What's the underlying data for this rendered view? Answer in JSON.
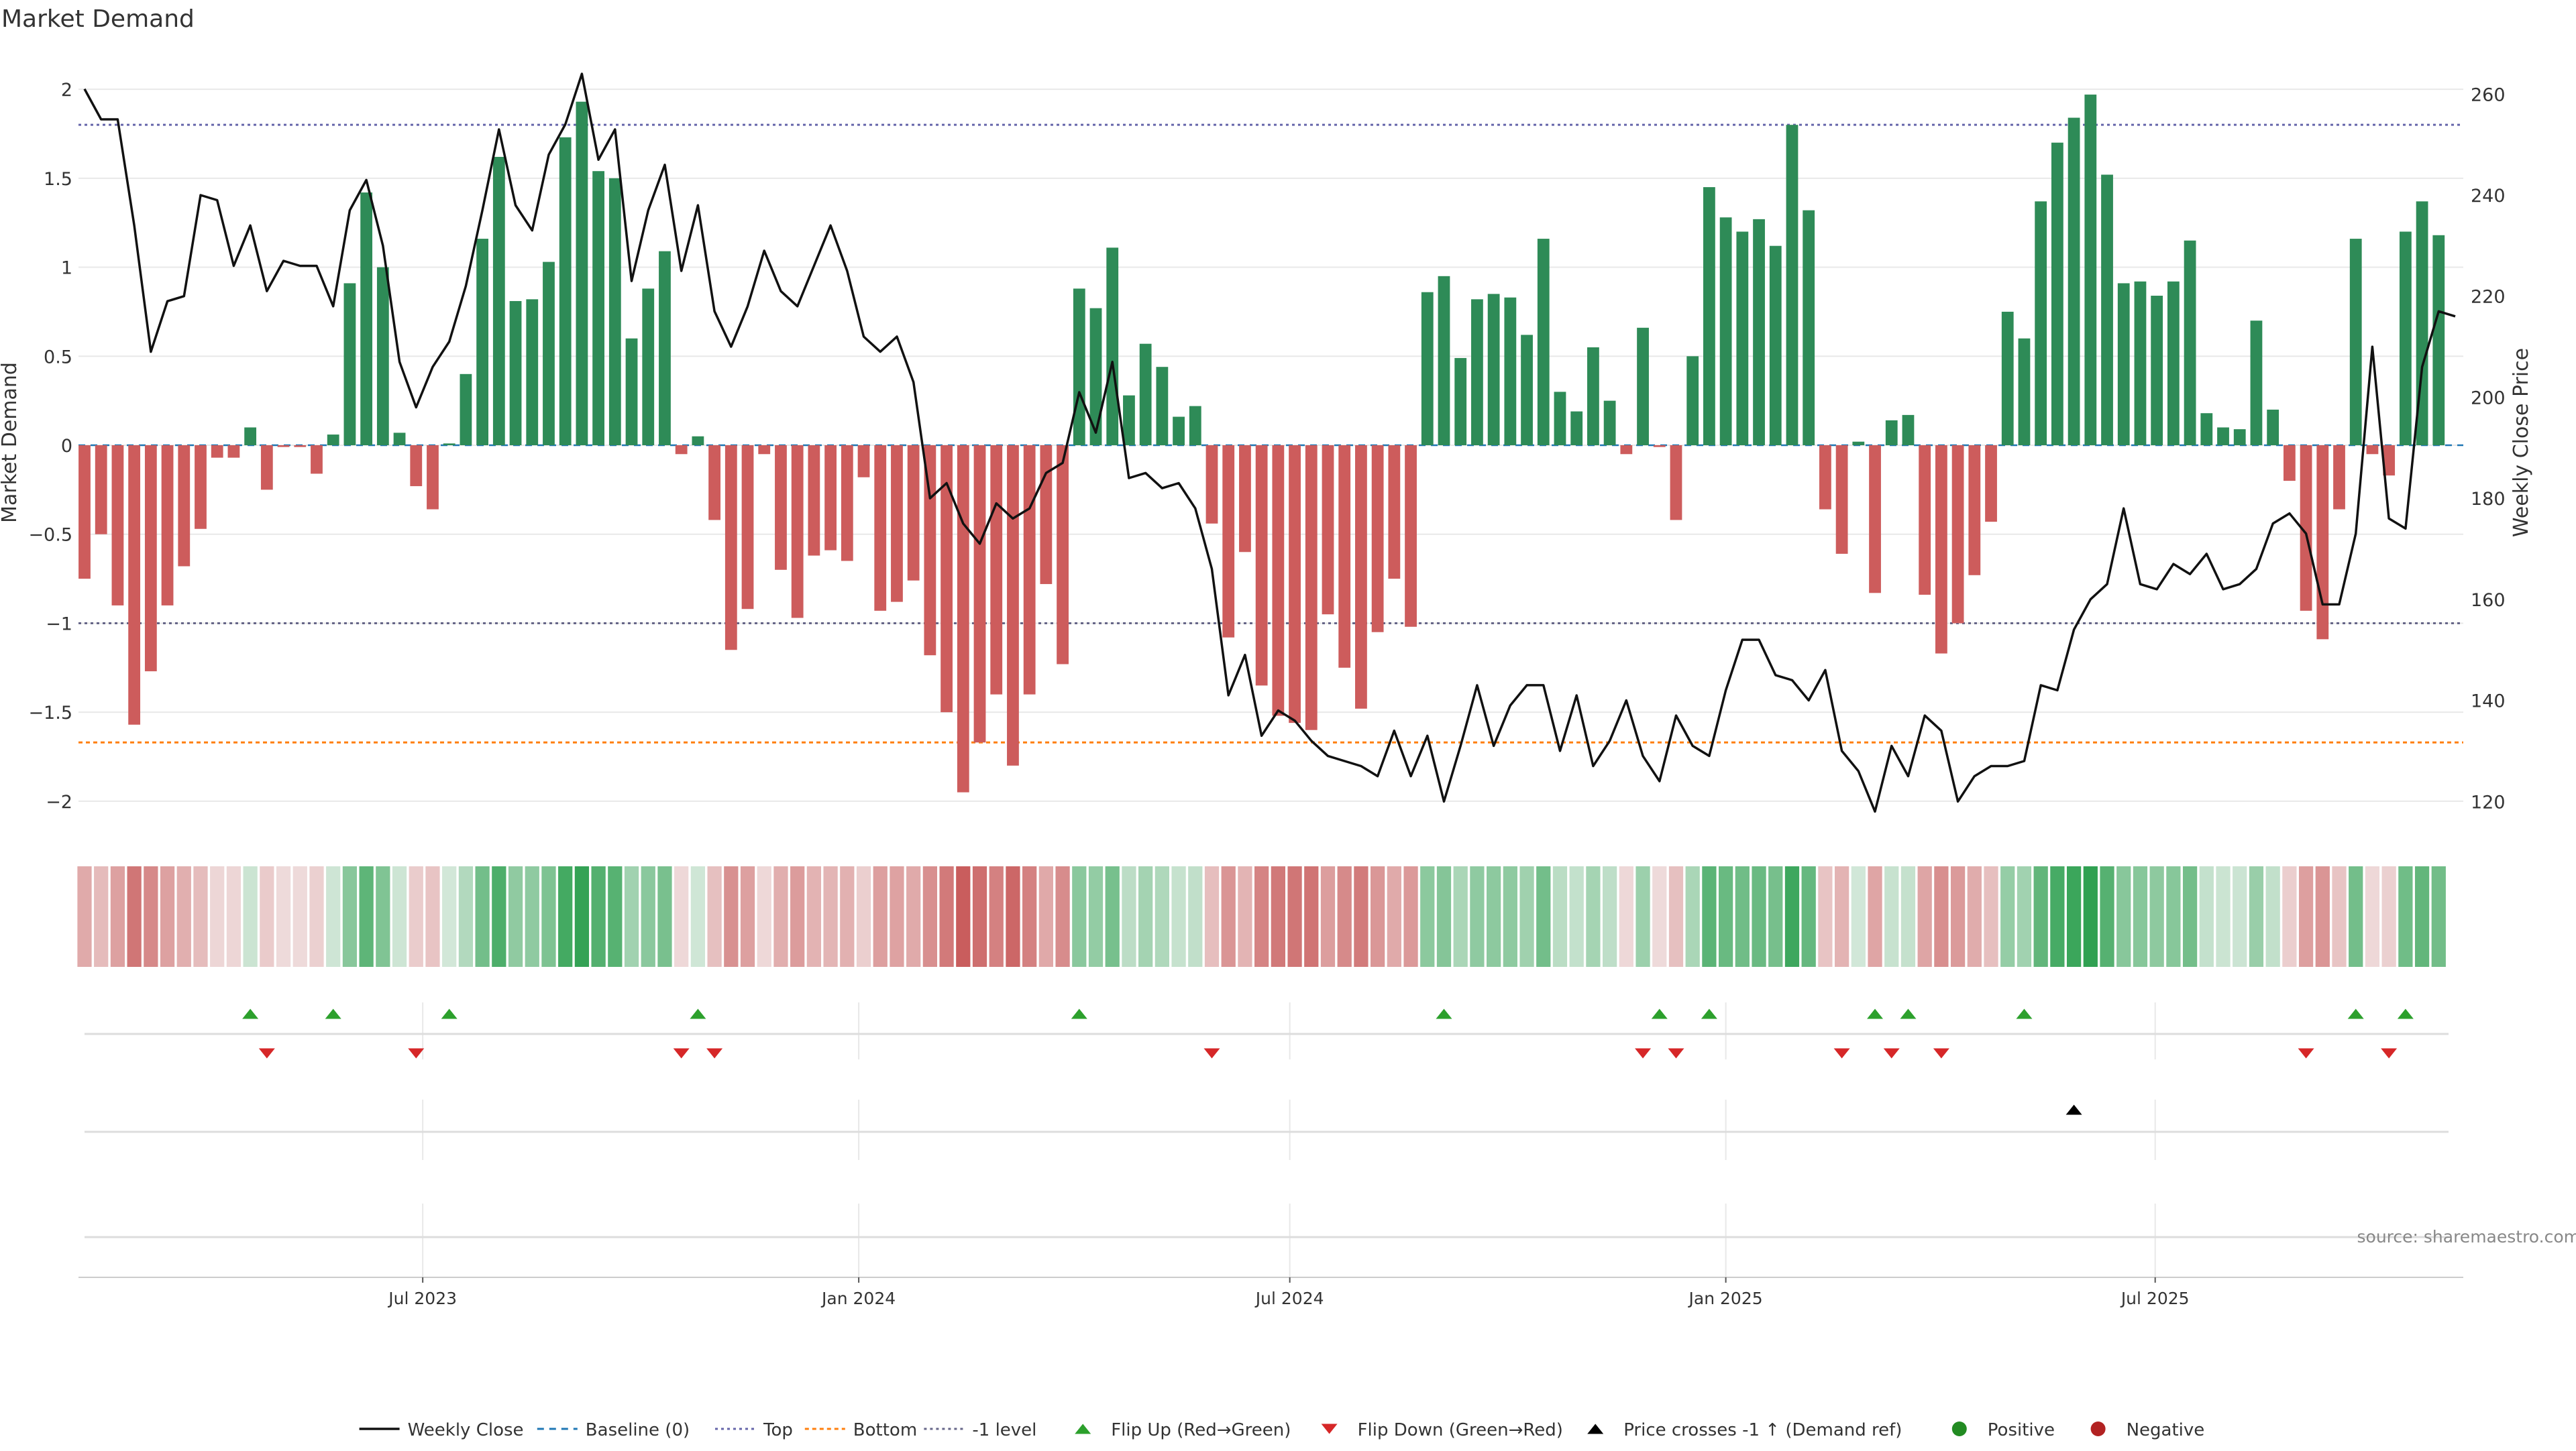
{
  "chart_data": {
    "type": "bar",
    "title": "Market Demand",
    "ylabel": "Market Demand",
    "y2label": "Weekly Close Price",
    "ylim": [
      -2.2,
      2.2
    ],
    "y2lim": [
      113,
      268
    ],
    "yticks": [
      -2,
      -1.5,
      -1,
      -0.5,
      0,
      0.5,
      1,
      1.5,
      2
    ],
    "ytick_labels": [
      "−2",
      "−1.5",
      "−1",
      "−0.5",
      "0",
      "0.5",
      "1",
      "1.5",
      "2"
    ],
    "y2ticks": [
      120,
      140,
      160,
      180,
      200,
      220,
      240,
      260
    ],
    "y2tick_labels": [
      "120",
      "140",
      "160",
      "180",
      "200",
      "220",
      "240",
      "260"
    ],
    "x_start": "2023-02-06",
    "week_count": 144,
    "xticks": [
      {
        "label": "Jul 2023",
        "week": 20.4
      },
      {
        "label": "Jan 2024",
        "week": 46.7
      },
      {
        "label": "Jul 2024",
        "week": 72.7
      },
      {
        "label": "Jan 2025",
        "week": 99.0
      },
      {
        "label": "Jul 2025",
        "week": 124.9
      }
    ],
    "reference_lines": {
      "top": 1.8,
      "bottom": -1.67,
      "minus_one": -1.0,
      "baseline": 0
    },
    "series": [
      {
        "name": "Market Demand",
        "kind": "bar",
        "values": [
          -0.75,
          -0.5,
          -0.9,
          -1.57,
          -1.27,
          -0.9,
          -0.68,
          -0.47,
          -0.07,
          -0.07,
          0.1,
          -0.25,
          -0.01,
          -0.01,
          -0.16,
          0.06,
          0.91,
          1.42,
          1.0,
          0.07,
          -0.23,
          -0.36,
          0.01,
          0.4,
          1.16,
          1.62,
          0.81,
          0.82,
          1.03,
          1.73,
          1.93,
          1.54,
          1.5,
          0.6,
          0.88,
          1.09,
          -0.05,
          0.05,
          -0.42,
          -1.15,
          -0.92,
          -0.05,
          -0.7,
          -0.97,
          -0.62,
          -0.59,
          -0.65,
          -0.18,
          -0.93,
          -0.88,
          -0.76,
          -1.18,
          -1.5,
          -1.95,
          -1.67,
          -1.4,
          -1.8,
          -1.4,
          -0.78,
          -1.23,
          0.88,
          0.77,
          1.11,
          0.28,
          0.57,
          0.44,
          0.16,
          0.22,
          -0.44,
          -1.08,
          -0.6,
          -1.35,
          -1.52,
          -1.56,
          -1.6,
          -0.95,
          -1.25,
          -1.48,
          -1.05,
          -0.75,
          -1.02,
          0.86,
          0.95,
          0.49,
          0.82,
          0.85,
          0.83,
          0.62,
          1.16,
          0.3,
          0.19,
          0.55,
          0.25,
          -0.05,
          0.66,
          -0.01,
          -0.42,
          0.5,
          1.45,
          1.28,
          1.2,
          1.27,
          1.12,
          1.8,
          1.32,
          -0.36,
          -0.61,
          0.02,
          -0.83,
          0.14,
          0.17,
          -0.84,
          -1.17,
          -1.0,
          -0.73,
          -0.43,
          0.75,
          0.6,
          1.37,
          1.7,
          1.84,
          1.97,
          1.52,
          0.91,
          0.92,
          0.84,
          0.92,
          1.15,
          0.18,
          0.1,
          0.09,
          0.7,
          0.2,
          -0.2,
          -0.93,
          -1.09,
          -0.36,
          1.16,
          -0.05,
          -0.17,
          1.2,
          1.37,
          1.18
        ]
      },
      {
        "name": "Weekly Close",
        "kind": "line",
        "axis": "right",
        "values": [
          261,
          255,
          255,
          234,
          209,
          219,
          220,
          240,
          239,
          226,
          234,
          221,
          227,
          226,
          226,
          218,
          237,
          243,
          230,
          207,
          198,
          206,
          211,
          222,
          237,
          253,
          238,
          233,
          248,
          254,
          264,
          247,
          253,
          223,
          237,
          246,
          225,
          238,
          217,
          210,
          218,
          229,
          221,
          218,
          226,
          234,
          225,
          212,
          209,
          212,
          203,
          180,
          183,
          175,
          171,
          179,
          176,
          178,
          185,
          187,
          201,
          193,
          207,
          184,
          185,
          182,
          183,
          178,
          166,
          141,
          149,
          133,
          138,
          136,
          132,
          129,
          128,
          127,
          125,
          134,
          125,
          133,
          120,
          131,
          143,
          131,
          139,
          143,
          143,
          130,
          141,
          127,
          132,
          140,
          129,
          124,
          137,
          131,
          129,
          142,
          152,
          152,
          145,
          144,
          140,
          146,
          130,
          126,
          118,
          131,
          125,
          137,
          134,
          120,
          125,
          127,
          127,
          128,
          143,
          142,
          154,
          160,
          163,
          178,
          163,
          162,
          167,
          165,
          169,
          162,
          163,
          166,
          175,
          177,
          173,
          159,
          159,
          173,
          210,
          176,
          174,
          206,
          217,
          216
        ]
      },
      {
        "name": "Demand Strip",
        "kind": "heat",
        "values": [
          -0.75,
          -0.5,
          -0.9,
          -1.57,
          -1.27,
          -0.9,
          -0.68,
          -0.47,
          -0.07,
          -0.07,
          0.1,
          -0.25,
          -0.01,
          -0.01,
          -0.16,
          0.06,
          0.91,
          1.42,
          1.0,
          0.07,
          -0.23,
          -0.36,
          0.01,
          0.4,
          1.16,
          1.62,
          0.81,
          0.82,
          1.03,
          1.73,
          1.93,
          1.54,
          1.5,
          0.6,
          0.88,
          1.09,
          -0.05,
          0.05,
          -0.42,
          -1.15,
          -0.92,
          -0.05,
          -0.7,
          -0.97,
          -0.62,
          -0.59,
          -0.65,
          -0.18,
          -0.93,
          -0.88,
          -0.76,
          -1.18,
          -1.5,
          -1.95,
          -1.67,
          -1.4,
          -1.8,
          -1.4,
          -0.78,
          -1.23,
          0.88,
          0.77,
          1.11,
          0.28,
          0.57,
          0.44,
          0.16,
          0.22,
          -0.44,
          -1.08,
          -0.6,
          -1.35,
          -1.52,
          -1.56,
          -1.6,
          -0.95,
          -1.25,
          -1.48,
          -1.05,
          -0.75,
          -1.02,
          0.86,
          0.95,
          0.49,
          0.82,
          0.85,
          0.83,
          0.62,
          1.16,
          0.3,
          0.19,
          0.55,
          0.25,
          -0.05,
          0.66,
          -0.01,
          -0.42,
          0.5,
          1.45,
          1.28,
          1.2,
          1.27,
          1.12,
          1.8,
          1.32,
          -0.36,
          -0.61,
          0.02,
          -0.83,
          0.14,
          0.17,
          -0.84,
          -1.17,
          -1.0,
          -0.73,
          -0.43,
          0.75,
          0.6,
          1.37,
          1.7,
          1.84,
          1.97,
          1.52,
          0.91,
          0.92,
          0.84,
          0.92,
          1.15,
          0.18,
          0.1,
          0.09,
          0.7,
          0.2,
          -0.2,
          -0.93,
          -1.09,
          -0.36,
          1.16,
          -0.05,
          -0.17,
          1.2,
          1.37,
          1.18
        ]
      }
    ],
    "events": {
      "flip_up_weeks": [
        10,
        15,
        22,
        37,
        60,
        82,
        95,
        98,
        108,
        110,
        117,
        137,
        140
      ],
      "flip_down_weeks": [
        11,
        20,
        36,
        38,
        68,
        94,
        96,
        106,
        109,
        112,
        134,
        139
      ],
      "price_cross_weeks": [
        120
      ]
    },
    "colors": {
      "positive": "#2e8b57",
      "negative": "#cd5c5c",
      "line": "#111111",
      "baseline": "#1f77b4",
      "top": "#6666aa",
      "bottom": "#ff7f0e",
      "minus_one": "#666688",
      "flip_up": "#2ca02c",
      "flip_down": "#d62728",
      "cross": "#000000",
      "dot_positive": "#228b22",
      "dot_negative": "#b22222",
      "grid": "#e8e8e8"
    },
    "legend": [
      {
        "key": "line",
        "label": "Weekly Close"
      },
      {
        "key": "baseline",
        "label": "Baseline (0)"
      },
      {
        "key": "top",
        "label": "Top"
      },
      {
        "key": "bottom",
        "label": "Bottom"
      },
      {
        "key": "minus_one",
        "label": "-1 level"
      },
      {
        "key": "flip_up",
        "label": "Flip Up (Red→Green)"
      },
      {
        "key": "flip_down",
        "label": "Flip Down (Green→Red)"
      },
      {
        "key": "cross",
        "label": "Price crosses -1 ↑ (Demand ref)"
      },
      {
        "key": "dot_positive",
        "label": "Positive"
      },
      {
        "key": "dot_negative",
        "label": "Negative"
      }
    ],
    "legend_position": "bottom-center",
    "source": "source: sharemaestro.com"
  }
}
